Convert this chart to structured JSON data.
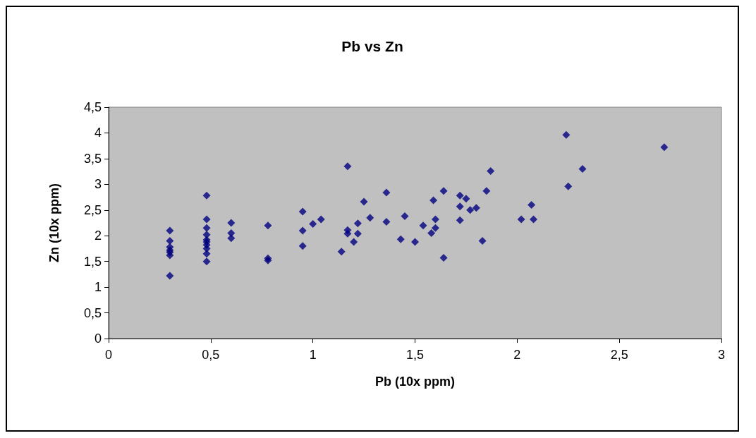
{
  "chart_data": {
    "type": "scatter",
    "title": "Pb vs Zn",
    "xlabel": "Pb (10x ppm)",
    "ylabel": "Zn (10x ppm)",
    "marker": "diamond",
    "grid": false,
    "xlim": [
      0,
      3
    ],
    "xticks": [
      0,
      {
        "value": 0.5,
        "label": "0,5"
      },
      1,
      {
        "value": 1.5,
        "label": "1,5"
      },
      2,
      {
        "value": 2.5,
        "label": "2,5"
      },
      3
    ],
    "ylim": [
      0,
      4.5
    ],
    "yticks": [
      0,
      {
        "value": 0.5,
        "label": "0,5"
      },
      1,
      {
        "value": 1.5,
        "label": "1,5"
      },
      2,
      {
        "value": 2.5,
        "label": "2,5"
      },
      3,
      {
        "value": 3.5,
        "label": "3,5"
      },
      4,
      {
        "value": 4.5,
        "label": "4,5"
      }
    ],
    "series": [
      {
        "color": "#000080",
        "x": [
          0.3,
          0.3,
          0.3,
          0.3,
          0.3,
          0.3,
          0.3,
          0.48,
          0.48,
          0.48,
          0.48,
          0.48,
          0.48,
          0.48,
          0.48,
          0.48,
          0.48,
          0.6,
          0.6,
          0.6,
          0.78,
          0.78,
          0.78,
          0.95,
          0.95,
          0.95,
          1.0,
          1.04,
          1.17,
          1.14,
          1.17,
          1.17,
          1.2,
          1.22,
          1.22,
          1.25,
          1.28,
          1.36,
          1.36,
          1.43,
          1.45,
          1.5,
          1.54,
          1.59,
          1.6,
          1.6,
          1.58,
          1.64,
          1.64,
          1.72,
          1.75,
          1.72,
          1.72,
          1.77,
          1.8,
          1.85,
          1.87,
          1.83,
          2.24,
          2.72,
          2.32,
          2.25,
          2.07,
          2.02,
          2.08
        ],
        "values": [
          2.1,
          1.9,
          1.78,
          1.72,
          1.68,
          1.62,
          1.22,
          2.78,
          2.32,
          2.15,
          2.02,
          1.92,
          1.88,
          1.82,
          1.75,
          1.65,
          1.5,
          2.25,
          2.05,
          1.95,
          2.2,
          1.56,
          1.52,
          2.47,
          2.1,
          1.8,
          2.23,
          2.32,
          3.35,
          1.69,
          2.11,
          2.04,
          1.88,
          2.24,
          2.04,
          2.66,
          2.35,
          2.84,
          2.27,
          1.93,
          2.38,
          1.88,
          2.2,
          2.69,
          2.32,
          2.15,
          2.05,
          1.57,
          2.87,
          2.78,
          2.72,
          2.57,
          2.3,
          2.5,
          2.54,
          2.87,
          3.26,
          1.9,
          3.96,
          3.72,
          3.3,
          2.96,
          2.6,
          2.32,
          2.32
        ]
      }
    ]
  }
}
